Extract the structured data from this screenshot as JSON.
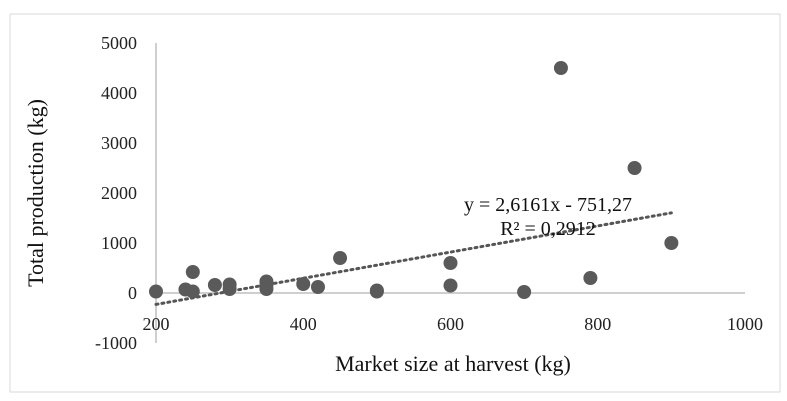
{
  "chart_data": {
    "type": "scatter",
    "title": "",
    "xlabel": "Market size at harvest (kg)",
    "ylabel": "Total production (kg)",
    "xlim": [
      0,
      1000
    ],
    "ylim": [
      -1000,
      5000
    ],
    "x_ticks": [
      "200",
      "400",
      "600",
      "800",
      "1000"
    ],
    "y_ticks": [
      "-1000",
      "0",
      "1000",
      "2000",
      "3000",
      "4000",
      "5000"
    ],
    "grid": false,
    "legend": "none",
    "series": [
      {
        "x": [
          200,
          240,
          250,
          250,
          280,
          300,
          300,
          350,
          350,
          350,
          400,
          420,
          450,
          500,
          500,
          600,
          600,
          700,
          750,
          790,
          850,
          900
        ],
        "y": [
          30,
          70,
          30,
          420,
          160,
          170,
          80,
          230,
          150,
          80,
          180,
          120,
          700,
          50,
          30,
          600,
          150,
          20,
          4500,
          300,
          2500,
          1000
        ]
      }
    ],
    "trendline": {
      "type": "linear",
      "slope": 2.6161,
      "intercept": -751.27,
      "x_range": [
        200,
        900
      ],
      "equation": "y = 2,6161x - 751,27",
      "r_squared": "R² = 0,2912"
    },
    "colors": {
      "points": "#5a5a5a",
      "trendline": "#555555",
      "axis": "#bfbfbf"
    }
  }
}
